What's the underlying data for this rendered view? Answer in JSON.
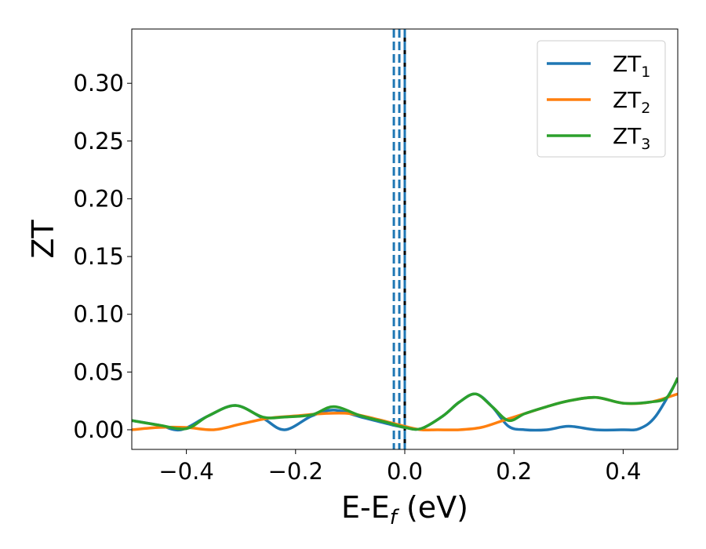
{
  "chart_data": {
    "type": "line",
    "title": "",
    "xlabel": {
      "base": "E-E",
      "sub": "f",
      "unit": " (eV)"
    },
    "ylabel": "ZT",
    "xlim": [
      -0.5,
      0.5
    ],
    "ylim": [
      -0.017,
      0.347
    ],
    "grid": false,
    "legend_position": "top-right",
    "xticks": [
      -0.4,
      -0.2,
      0.0,
      0.2,
      0.4
    ],
    "xtick_labels": [
      "−0.4",
      "−0.2",
      "0.0",
      "0.2",
      "0.4"
    ],
    "yticks": [
      0.0,
      0.05,
      0.1,
      0.15,
      0.2,
      0.25,
      0.3
    ],
    "ytick_labels": [
      "0.00",
      "0.05",
      "0.10",
      "0.15",
      "0.20",
      "0.25",
      "0.30"
    ],
    "vlines": [
      {
        "x": 0.0,
        "color": "#000000",
        "style": "solid"
      },
      {
        "x": -0.02,
        "color": "#1f77b4",
        "style": "dashed"
      },
      {
        "x": -0.01,
        "color": "#1f77b4",
        "style": "dashed"
      },
      {
        "x": 0.0,
        "color": "#1f77b4",
        "style": "dashed"
      }
    ],
    "series": [
      {
        "name": "ZT",
        "name_sub": "1",
        "color": "#1f77b4",
        "x": [
          -0.5,
          -0.45,
          -0.41,
          -0.36,
          -0.31,
          -0.26,
          -0.22,
          -0.17,
          -0.13,
          -0.08,
          -0.03,
          0.0,
          0.03,
          0.07,
          0.1,
          0.13,
          0.16,
          0.19,
          0.22,
          0.26,
          0.3,
          0.35,
          0.4,
          0.43,
          0.46,
          0.5
        ],
        "y": [
          0.008,
          0.004,
          0.0,
          0.012,
          0.021,
          0.01,
          0.0,
          0.012,
          0.017,
          0.011,
          0.005,
          0.002,
          0.001,
          0.012,
          0.024,
          0.031,
          0.02,
          0.003,
          0.0,
          0.0,
          0.003,
          0.0,
          0.0,
          0.001,
          0.012,
          0.044
        ]
      },
      {
        "name": "ZT",
        "name_sub": "2",
        "color": "#ff7f0e",
        "x": [
          -0.5,
          -0.45,
          -0.4,
          -0.35,
          -0.3,
          -0.25,
          -0.2,
          -0.15,
          -0.1,
          -0.05,
          0.0,
          0.03,
          0.06,
          0.1,
          0.14,
          0.18,
          0.22,
          0.26,
          0.3,
          0.35,
          0.4,
          0.45,
          0.5
        ],
        "y": [
          0.0,
          0.002,
          0.002,
          0.0,
          0.005,
          0.01,
          0.012,
          0.014,
          0.014,
          0.009,
          0.003,
          0.0,
          0.0,
          0.0,
          0.002,
          0.008,
          0.014,
          0.02,
          0.025,
          0.028,
          0.023,
          0.024,
          0.031
        ]
      },
      {
        "name": "ZT",
        "name_sub": "3",
        "color": "#2ca02c",
        "x": [
          -0.5,
          -0.45,
          -0.4,
          -0.36,
          -0.31,
          -0.26,
          -0.22,
          -0.17,
          -0.13,
          -0.08,
          -0.03,
          0.0,
          0.03,
          0.07,
          0.1,
          0.13,
          0.16,
          0.19,
          0.22,
          0.26,
          0.3,
          0.35,
          0.4,
          0.45,
          0.48,
          0.5
        ],
        "y": [
          0.008,
          0.004,
          0.001,
          0.012,
          0.021,
          0.011,
          0.011,
          0.013,
          0.02,
          0.012,
          0.006,
          0.002,
          0.001,
          0.012,
          0.024,
          0.031,
          0.02,
          0.008,
          0.014,
          0.02,
          0.025,
          0.028,
          0.023,
          0.024,
          0.028,
          0.045
        ]
      }
    ]
  }
}
